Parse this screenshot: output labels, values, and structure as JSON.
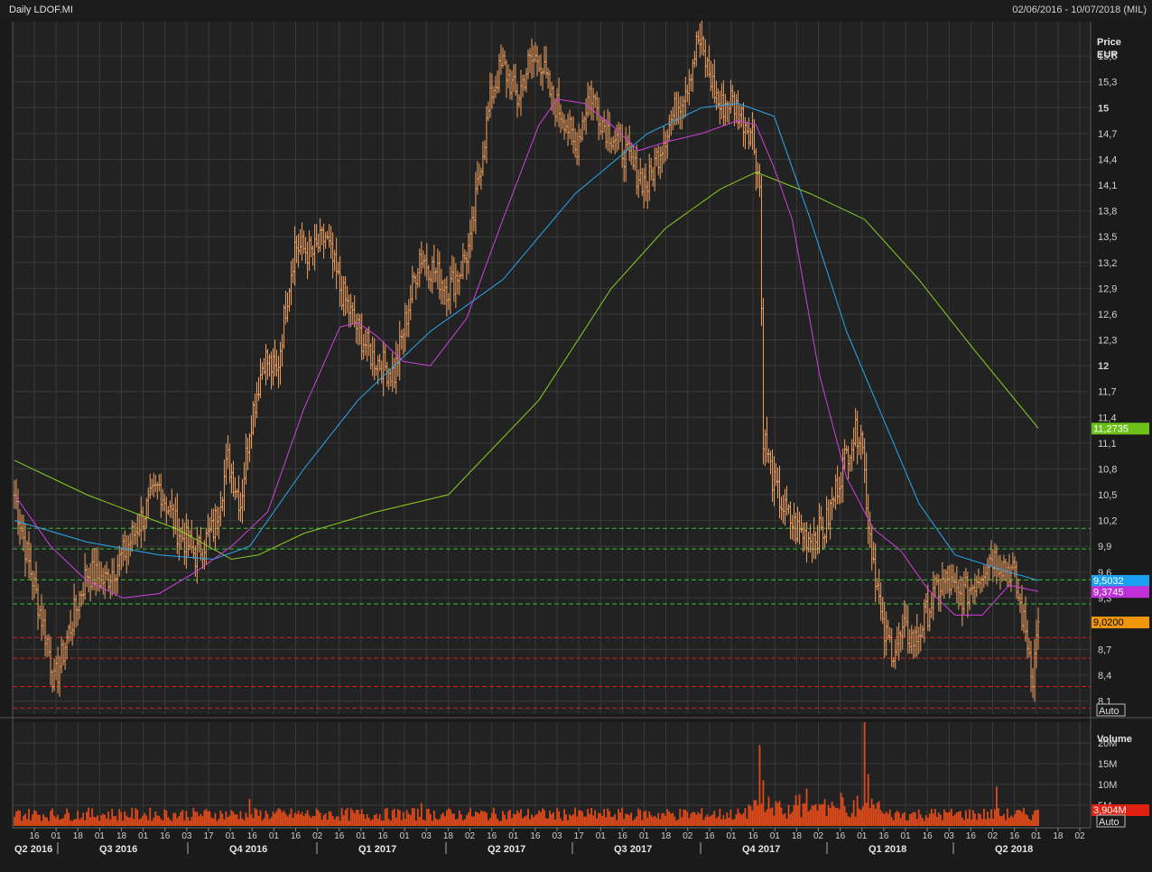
{
  "header": {
    "title": "Daily LDOF.MI",
    "range": "02/06/2016 - 10/07/2018 (MIL)"
  },
  "colors": {
    "background": "#222222",
    "grid": "#3a3a3a",
    "price_bar": "#f0a060",
    "volume_bar": "#e04a1a",
    "ma_long": "#8cd020",
    "ma_mid": "#2aa8f0",
    "ma_short": "#d040e0",
    "support_line": "#30c030",
    "resistance_line": "#d02020",
    "last_price_tag": "#f0960a"
  },
  "price_axis": {
    "title_line1": "Price",
    "title_line2": "EUR",
    "ticks": [
      {
        "label": "15,6",
        "value": 15.6,
        "bold": false
      },
      {
        "label": "15,3",
        "value": 15.3,
        "bold": false
      },
      {
        "label": "15",
        "value": 15.0,
        "bold": true
      },
      {
        "label": "14,7",
        "value": 14.7,
        "bold": false
      },
      {
        "label": "14,4",
        "value": 14.4,
        "bold": false
      },
      {
        "label": "14,1",
        "value": 14.1,
        "bold": false
      },
      {
        "label": "13,8",
        "value": 13.8,
        "bold": false
      },
      {
        "label": "13,5",
        "value": 13.5,
        "bold": false
      },
      {
        "label": "13,2",
        "value": 13.2,
        "bold": false
      },
      {
        "label": "12,9",
        "value": 12.9,
        "bold": false
      },
      {
        "label": "12,6",
        "value": 12.6,
        "bold": false
      },
      {
        "label": "12,3",
        "value": 12.3,
        "bold": false
      },
      {
        "label": "12",
        "value": 12.0,
        "bold": true
      },
      {
        "label": "11,7",
        "value": 11.7,
        "bold": false
      },
      {
        "label": "11,4",
        "value": 11.4,
        "bold": false
      },
      {
        "label": "11,1",
        "value": 11.1,
        "bold": false
      },
      {
        "label": "10,8",
        "value": 10.8,
        "bold": false
      },
      {
        "label": "10,5",
        "value": 10.5,
        "bold": false
      },
      {
        "label": "10,2",
        "value": 10.2,
        "bold": false
      },
      {
        "label": "9,9",
        "value": 9.9,
        "bold": false
      },
      {
        "label": "9,6",
        "value": 9.6,
        "bold": false
      },
      {
        "label": "9,3",
        "value": 9.3,
        "bold": false
      },
      {
        "label": "8,7",
        "value": 8.7,
        "bold": false
      },
      {
        "label": "8,4",
        "value": 8.4,
        "bold": false
      },
      {
        "label": "8,1",
        "value": 8.1,
        "bold": false
      }
    ],
    "auto_label": "Auto"
  },
  "volume_axis": {
    "title": "Volume",
    "ticks": [
      {
        "label": "20M",
        "value": 20
      },
      {
        "label": "15M",
        "value": 15
      },
      {
        "label": "10M",
        "value": 10
      },
      {
        "label": "5M",
        "value": 5
      }
    ],
    "auto_label": "Auto"
  },
  "value_tags": [
    {
      "label": "11,2735",
      "value": 11.2735,
      "color": "#6cc018",
      "text_color": "#ffffff"
    },
    {
      "label": "9,5032",
      "value": 9.5032,
      "color": "#1aa0f0",
      "text_color": "#ffffff"
    },
    {
      "label": "9,3745",
      "value": 9.3745,
      "color": "#c030d8",
      "text_color": "#ffffff"
    },
    {
      "label": "9,0200",
      "value": 9.02,
      "color": "#f0960a",
      "text_color": "#000000"
    }
  ],
  "volume_tag": {
    "label": "3,904M",
    "value": 3.904,
    "color": "#e02010",
    "text_color": "#ffffff"
  },
  "x_axis": {
    "day_labels": [
      "16",
      "01",
      "18",
      "01",
      "18",
      "01",
      "16",
      "03",
      "17",
      "01",
      "16",
      "01",
      "16",
      "02",
      "16",
      "01",
      "16",
      "01",
      "03",
      "18",
      "02",
      "16",
      "01",
      "16",
      "03",
      "17",
      "01",
      "16",
      "01",
      "18",
      "02",
      "16",
      "01",
      "16",
      "01",
      "18",
      "02",
      "16",
      "01",
      "16",
      "01",
      "16",
      "03",
      "16",
      "02",
      "16",
      "01",
      "18",
      "02"
    ],
    "quarter_labels": [
      "Q2 2016",
      "Q3 2016",
      "Q4 2016",
      "Q1 2017",
      "Q2 2017",
      "Q3 2017",
      "Q4 2017",
      "Q1 2018",
      "Q2 2018"
    ]
  },
  "chart_data": {
    "type": "bar",
    "subtype": "ohlc-daily-price-with-volume",
    "title": "Daily LDOF.MI",
    "xlabel": "",
    "ylabel": "Price EUR",
    "ylim": [
      7.95,
      16.0
    ],
    "x_range": [
      "02/06/2016",
      "10/07/2018"
    ],
    "grid": true,
    "close_keyframes": [
      {
        "i": 0,
        "v": 10.5
      },
      {
        "i": 8,
        "v": 9.7
      },
      {
        "i": 18,
        "v": 8.8
      },
      {
        "i": 22,
        "v": 8.3
      },
      {
        "i": 30,
        "v": 8.9
      },
      {
        "i": 40,
        "v": 9.6
      },
      {
        "i": 50,
        "v": 9.5
      },
      {
        "i": 60,
        "v": 9.8
      },
      {
        "i": 72,
        "v": 10.3
      },
      {
        "i": 80,
        "v": 10.6
      },
      {
        "i": 90,
        "v": 10.1
      },
      {
        "i": 100,
        "v": 9.8
      },
      {
        "i": 110,
        "v": 10.1
      },
      {
        "i": 118,
        "v": 10.9
      },
      {
        "i": 125,
        "v": 10.4
      },
      {
        "i": 130,
        "v": 11.3
      },
      {
        "i": 138,
        "v": 12.1
      },
      {
        "i": 145,
        "v": 11.9
      },
      {
        "i": 150,
        "v": 12.7
      },
      {
        "i": 155,
        "v": 13.4
      },
      {
        "i": 165,
        "v": 13.3
      },
      {
        "i": 172,
        "v": 13.5
      },
      {
        "i": 180,
        "v": 12.9
      },
      {
        "i": 190,
        "v": 12.4
      },
      {
        "i": 198,
        "v": 12.1
      },
      {
        "i": 210,
        "v": 11.9
      },
      {
        "i": 218,
        "v": 12.7
      },
      {
        "i": 224,
        "v": 13.3
      },
      {
        "i": 232,
        "v": 13.1
      },
      {
        "i": 240,
        "v": 12.9
      },
      {
        "i": 246,
        "v": 13.1
      },
      {
        "i": 252,
        "v": 13.4
      },
      {
        "i": 258,
        "v": 14.4
      },
      {
        "i": 264,
        "v": 15.2
      },
      {
        "i": 270,
        "v": 15.5
      },
      {
        "i": 278,
        "v": 15.1
      },
      {
        "i": 284,
        "v": 15.5
      },
      {
        "i": 290,
        "v": 15.6
      },
      {
        "i": 297,
        "v": 15.1
      },
      {
        "i": 304,
        "v": 14.9
      },
      {
        "i": 310,
        "v": 14.5
      },
      {
        "i": 318,
        "v": 15.2
      },
      {
        "i": 326,
        "v": 14.8
      },
      {
        "i": 334,
        "v": 14.6
      },
      {
        "i": 342,
        "v": 14.3
      },
      {
        "i": 350,
        "v": 14.1
      },
      {
        "i": 358,
        "v": 14.6
      },
      {
        "i": 366,
        "v": 15.0
      },
      {
        "i": 372,
        "v": 15.3
      },
      {
        "i": 378,
        "v": 15.8
      },
      {
        "i": 384,
        "v": 15.4
      },
      {
        "i": 390,
        "v": 15.0
      },
      {
        "i": 396,
        "v": 15.1
      },
      {
        "i": 402,
        "v": 14.9
      },
      {
        "i": 408,
        "v": 14.7
      },
      {
        "i": 412,
        "v": 14.1
      },
      {
        "i": 414,
        "v": 11.2
      },
      {
        "i": 420,
        "v": 10.6
      },
      {
        "i": 426,
        "v": 10.3
      },
      {
        "i": 432,
        "v": 10.1
      },
      {
        "i": 440,
        "v": 10.0
      },
      {
        "i": 448,
        "v": 10.1
      },
      {
        "i": 456,
        "v": 10.7
      },
      {
        "i": 462,
        "v": 11.1
      },
      {
        "i": 468,
        "v": 11.3
      },
      {
        "i": 472,
        "v": 10.2
      },
      {
        "i": 476,
        "v": 9.6
      },
      {
        "i": 480,
        "v": 8.9
      },
      {
        "i": 486,
        "v": 8.7
      },
      {
        "i": 492,
        "v": 8.9
      },
      {
        "i": 498,
        "v": 8.8
      },
      {
        "i": 504,
        "v": 9.1
      },
      {
        "i": 510,
        "v": 9.4
      },
      {
        "i": 516,
        "v": 9.5
      },
      {
        "i": 522,
        "v": 9.3
      },
      {
        "i": 528,
        "v": 9.4
      },
      {
        "i": 534,
        "v": 9.6
      },
      {
        "i": 540,
        "v": 9.8
      },
      {
        "i": 546,
        "v": 9.7
      },
      {
        "i": 552,
        "v": 9.6
      },
      {
        "i": 556,
        "v": 9.2
      },
      {
        "i": 560,
        "v": 8.8
      },
      {
        "i": 563,
        "v": 8.4
      },
      {
        "i": 566,
        "v": 9.02
      }
    ],
    "bar_count": 567,
    "moving_averages": [
      {
        "label": "11,2735",
        "last": 11.2735,
        "color": "#8cd020",
        "points": [
          [
            0,
            10.9
          ],
          [
            40,
            10.5
          ],
          [
            90,
            10.1
          ],
          [
            120,
            9.75
          ],
          [
            135,
            9.8
          ],
          [
            160,
            10.05
          ],
          [
            200,
            10.3
          ],
          [
            240,
            10.5
          ],
          [
            290,
            11.6
          ],
          [
            330,
            12.9
          ],
          [
            360,
            13.6
          ],
          [
            390,
            14.05
          ],
          [
            410,
            14.25
          ],
          [
            440,
            14.0
          ],
          [
            470,
            13.7
          ],
          [
            500,
            13.0
          ],
          [
            530,
            12.2
          ],
          [
            566,
            11.2735
          ]
        ]
      },
      {
        "label": "9,5032",
        "last": 9.5032,
        "color": "#2aa8f0",
        "points": [
          [
            0,
            10.2
          ],
          [
            40,
            9.95
          ],
          [
            80,
            9.8
          ],
          [
            110,
            9.75
          ],
          [
            130,
            9.9
          ],
          [
            160,
            10.8
          ],
          [
            190,
            11.6
          ],
          [
            230,
            12.4
          ],
          [
            270,
            13.0
          ],
          [
            310,
            14.0
          ],
          [
            350,
            14.7
          ],
          [
            380,
            15.0
          ],
          [
            400,
            15.05
          ],
          [
            420,
            14.9
          ],
          [
            440,
            13.7
          ],
          [
            460,
            12.4
          ],
          [
            480,
            11.4
          ],
          [
            500,
            10.4
          ],
          [
            520,
            9.8
          ],
          [
            550,
            9.6
          ],
          [
            566,
            9.5032
          ]
        ]
      },
      {
        "label": "9,3745",
        "last": 9.3745,
        "color": "#d040e0",
        "points": [
          [
            0,
            10.5
          ],
          [
            20,
            9.9
          ],
          [
            40,
            9.5
          ],
          [
            60,
            9.3
          ],
          [
            80,
            9.35
          ],
          [
            100,
            9.6
          ],
          [
            120,
            9.9
          ],
          [
            140,
            10.3
          ],
          [
            160,
            11.5
          ],
          [
            180,
            12.45
          ],
          [
            190,
            12.5
          ],
          [
            200,
            12.35
          ],
          [
            215,
            12.05
          ],
          [
            230,
            12.0
          ],
          [
            250,
            12.55
          ],
          [
            270,
            13.7
          ],
          [
            290,
            14.8
          ],
          [
            300,
            15.1
          ],
          [
            315,
            15.05
          ],
          [
            330,
            14.8
          ],
          [
            345,
            14.5
          ],
          [
            360,
            14.6
          ],
          [
            380,
            14.7
          ],
          [
            400,
            14.85
          ],
          [
            410,
            14.8
          ],
          [
            420,
            14.3
          ],
          [
            430,
            13.7
          ],
          [
            445,
            11.9
          ],
          [
            460,
            10.7
          ],
          [
            475,
            10.1
          ],
          [
            490,
            9.85
          ],
          [
            505,
            9.4
          ],
          [
            520,
            9.1
          ],
          [
            535,
            9.1
          ],
          [
            550,
            9.45
          ],
          [
            566,
            9.3745
          ]
        ]
      }
    ],
    "horizontal_lines": [
      {
        "value": 10.11,
        "color": "#30c030"
      },
      {
        "value": 9.87,
        "color": "#30c030"
      },
      {
        "value": 9.51,
        "color": "#30c030"
      },
      {
        "value": 9.23,
        "color": "#30c030"
      },
      {
        "value": 8.84,
        "color": "#d02020"
      },
      {
        "value": 8.6,
        "color": "#d02020"
      },
      {
        "value": 8.27,
        "color": "#d02020"
      },
      {
        "value": 8.02,
        "color": "#d02020"
      }
    ],
    "volume": {
      "ylim": [
        0,
        25
      ],
      "unit": "M",
      "last": 3.904,
      "spikes": [
        {
          "i": 412,
          "v": 19.5
        },
        {
          "i": 414,
          "v": 11.0
        },
        {
          "i": 470,
          "v": 26.0
        },
        {
          "i": 472,
          "v": 12.5
        },
        {
          "i": 457,
          "v": 8.0
        },
        {
          "i": 438,
          "v": 9.0
        },
        {
          "i": 543,
          "v": 9.5
        },
        {
          "i": 130,
          "v": 6.5
        },
        {
          "i": 225,
          "v": 5.5
        }
      ]
    }
  }
}
